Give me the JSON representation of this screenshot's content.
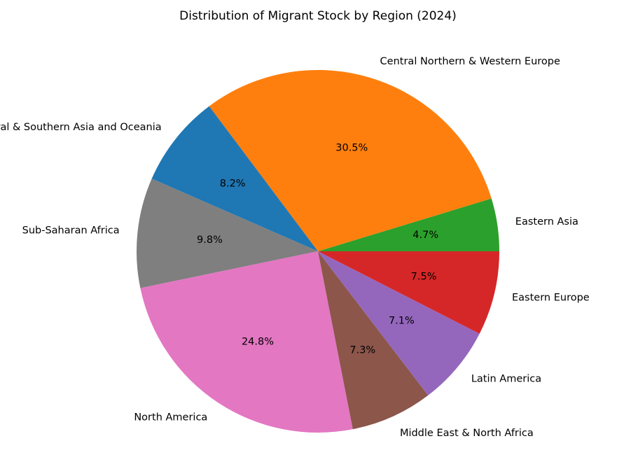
{
  "chart_data": {
    "type": "pie",
    "title": "Distribution of Migrant Stock by Region (2024)",
    "start_angle_deg": 0,
    "direction": "counterclockwise",
    "slices": [
      {
        "label": "Eastern Asia",
        "value": 4.7,
        "pct_label": "4.7%",
        "color": "#2ca02c"
      },
      {
        "label": "Central Northern & Western Europe",
        "value": 30.5,
        "pct_label": "30.5%",
        "color": "#ff7f0e"
      },
      {
        "label": "Central & Southern Asia and Oceania",
        "value": 8.2,
        "pct_label": "8.2%",
        "color": "#1f77b4"
      },
      {
        "label": "Sub-Saharan Africa",
        "value": 9.8,
        "pct_label": "9.8%",
        "color": "#7f7f7f"
      },
      {
        "label": "North America",
        "value": 24.8,
        "pct_label": "24.8%",
        "color": "#e377c2"
      },
      {
        "label": "Middle East & North Africa",
        "value": 7.3,
        "pct_label": "7.3%",
        "color": "#8c564b"
      },
      {
        "label": "Latin America",
        "value": 7.1,
        "pct_label": "7.1%",
        "color": "#9467bd"
      },
      {
        "label": "Eastern Europe",
        "value": 7.5,
        "pct_label": "7.5%",
        "color": "#d62728"
      }
    ]
  }
}
